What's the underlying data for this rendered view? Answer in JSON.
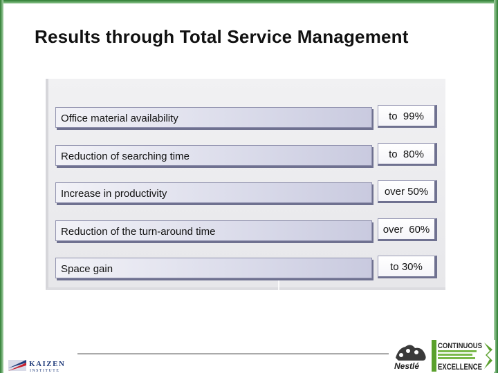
{
  "slide": {
    "title": "Results through Total Service Management"
  },
  "results": [
    {
      "label": "Office material availability",
      "value": "to  99%"
    },
    {
      "label": "Reduction of searching time",
      "value": "to  80%"
    },
    {
      "label": "Increase in productivity",
      "value": "over 50%"
    },
    {
      "label": "Reduction of the turn-around time",
      "value": "over  60%"
    },
    {
      "label": "Space gain",
      "value": "to 30%"
    }
  ],
  "footer": {
    "left_logo_text": "KAIZEN",
    "left_logo_subtext": "INSTITUTE",
    "nestle_logo_text": "Nestlé",
    "ce_logo_line1": "CONTINUOUS",
    "ce_logo_line2": "EXCELLENCE"
  },
  "colors": {
    "frame_green": "#2e7d32",
    "label_gradient_end": "#c9cadf",
    "box_shadow": "#6f7190",
    "ce_green": "#5aa02c"
  }
}
